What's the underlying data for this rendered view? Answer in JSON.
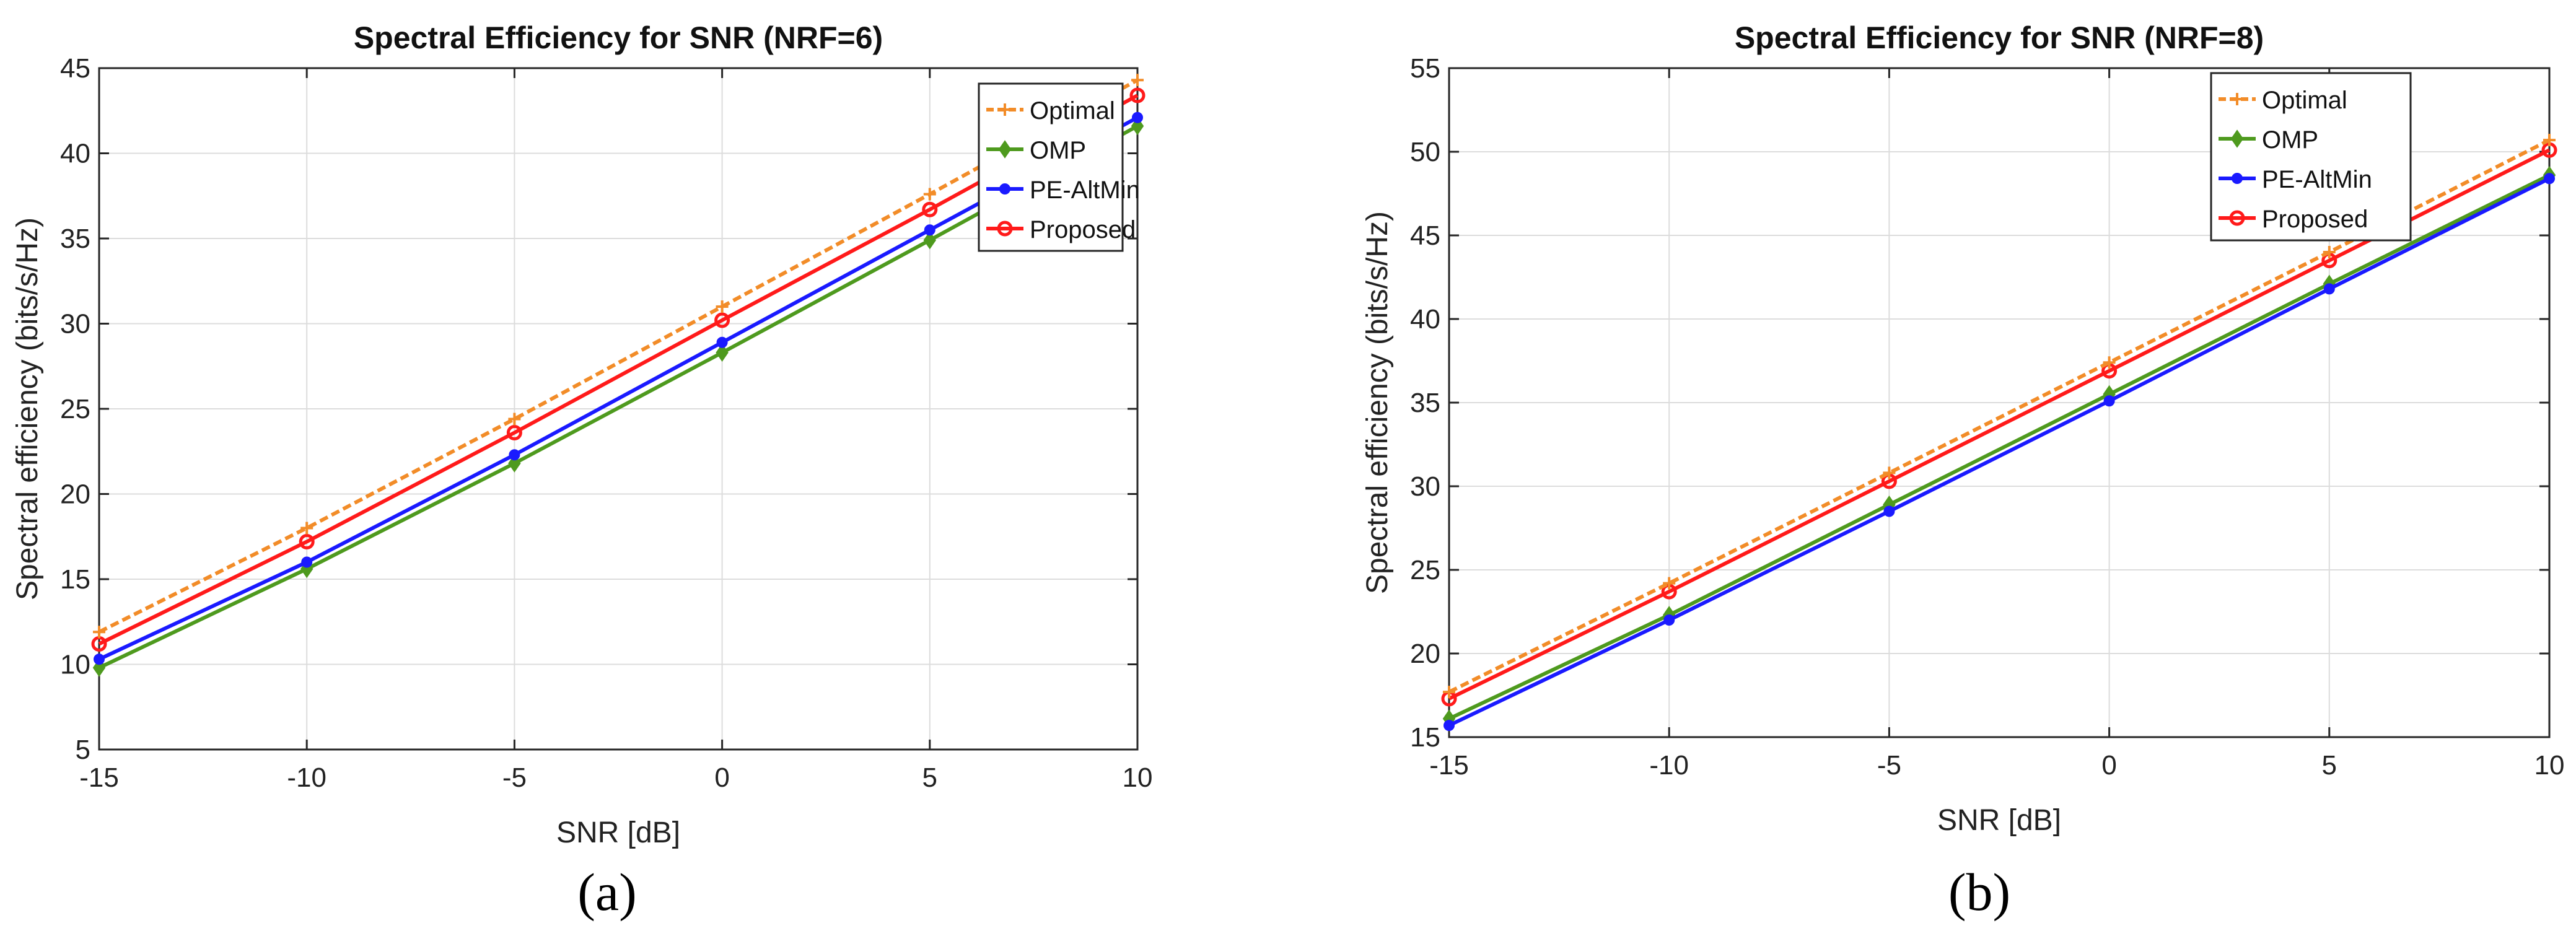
{
  "chart_data": [
    {
      "type": "line",
      "title": "Spectral Efficiency for SNR (NRF=6)",
      "xlabel": "SNR [dB]",
      "ylabel": "Spectral efficiency (bits/s/Hz)",
      "xlim": [
        -15,
        10
      ],
      "ylim": [
        5,
        45
      ],
      "xticks": [
        -15,
        -10,
        -5,
        0,
        5,
        10
      ],
      "xtick_labels": [
        "-15",
        "-10",
        "-5",
        "0",
        "5",
        "10"
      ],
      "yticks": [
        5,
        10,
        15,
        20,
        25,
        30,
        35,
        40,
        45
      ],
      "ytick_labels": [
        "5",
        "10",
        "15",
        "20",
        "25",
        "30",
        "35",
        "40",
        "45"
      ],
      "grid": true,
      "legend_position": "top-right",
      "x": [
        -15,
        -10,
        -5,
        0,
        5,
        10
      ],
      "series": [
        {
          "name": "Optimal",
          "color": "#f28c28",
          "marker": "plus",
          "dashed": true,
          "values": [
            11.9,
            18.0,
            24.4,
            31.0,
            37.6,
            44.3
          ]
        },
        {
          "name": "OMP",
          "color": "#4e9a1e",
          "marker": "diamond",
          "dashed": false,
          "values": [
            9.8,
            15.6,
            21.8,
            28.3,
            34.9,
            41.6
          ]
        },
        {
          "name": "PE-AltMin",
          "color": "#1a1aff",
          "marker": "dot",
          "dashed": false,
          "values": [
            10.3,
            16.0,
            22.3,
            28.9,
            35.5,
            42.1
          ]
        },
        {
          "name": "Proposed",
          "color": "#ff1a1a",
          "marker": "circle",
          "dashed": false,
          "values": [
            11.2,
            17.2,
            23.6,
            30.2,
            36.7,
            43.4
          ]
        }
      ],
      "caption": "(a)"
    },
    {
      "type": "line",
      "title": "Spectral Efficiency for SNR (NRF=8)",
      "xlabel": "SNR [dB]",
      "ylabel": "Spectral efficiency (bits/s/Hz)",
      "xlim": [
        -15,
        10
      ],
      "ylim": [
        15,
        55
      ],
      "xticks": [
        -15,
        -10,
        -5,
        0,
        5,
        10
      ],
      "xtick_labels": [
        "-15",
        "-10",
        "-5",
        "0",
        "5",
        "10"
      ],
      "yticks": [
        15,
        20,
        25,
        30,
        35,
        40,
        45,
        50,
        55
      ],
      "ytick_labels": [
        "15",
        "20",
        "25",
        "30",
        "35",
        "40",
        "45",
        "50",
        "55"
      ],
      "grid": true,
      "legend_position": "top-right",
      "x": [
        -15,
        -10,
        -5,
        0,
        5,
        10
      ],
      "series": [
        {
          "name": "Optimal",
          "color": "#f28c28",
          "marker": "plus",
          "dashed": true,
          "values": [
            17.7,
            24.2,
            30.8,
            37.4,
            44.0,
            50.7
          ]
        },
        {
          "name": "OMP",
          "color": "#4e9a1e",
          "marker": "diamond",
          "dashed": false,
          "values": [
            16.1,
            22.3,
            28.9,
            35.5,
            42.1,
            48.6
          ]
        },
        {
          "name": "PE-AltMin",
          "color": "#1a1aff",
          "marker": "dot",
          "dashed": false,
          "values": [
            15.7,
            22.0,
            28.5,
            35.1,
            41.8,
            48.4
          ]
        },
        {
          "name": "Proposed",
          "color": "#ff1a1a",
          "marker": "circle",
          "dashed": false,
          "values": [
            17.3,
            23.7,
            30.3,
            36.9,
            43.5,
            50.1
          ]
        }
      ],
      "caption": "(b)"
    }
  ]
}
